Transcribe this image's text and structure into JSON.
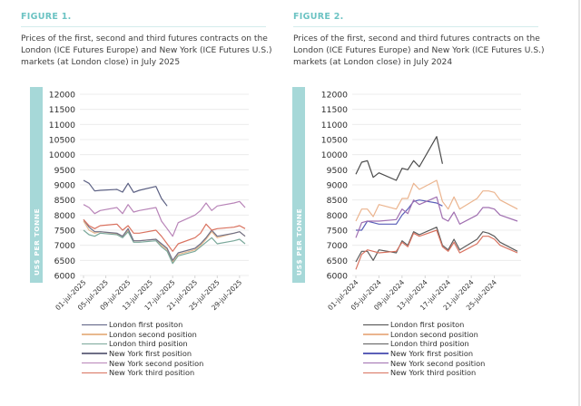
{
  "figures": [
    {
      "label": "FIGURE 1.",
      "description": "Prices of the first, second and third futures contracts on the London (ICE Futures Europe) and New York (ICE Futures U.S.) markets (at London close) in July 2025"
    },
    {
      "label": "FIGURE 2.",
      "description": "Prices of the first, second and third futures contracts on the London (ICE Futures Europe) and New York (ICE Futures U.S.) markets (at London close) in July 2024"
    }
  ],
  "chart_data": [
    {
      "type": "line",
      "title": "FIGURE 1.",
      "ylabel": "US$ PER TONNE",
      "xlabel": "",
      "ylim": [
        6000,
        12000
      ],
      "yticks": [
        12000,
        11500,
        11000,
        10500,
        10000,
        9500,
        9000,
        8500,
        8000,
        7500,
        7000,
        6500,
        6000
      ],
      "xticks": [
        "01-jul-2025",
        "05-jul-2025",
        "09-jul-2025",
        "13-jul-2025",
        "17-jul-2025",
        "21-jul-2025",
        "25-jul-2025",
        "29-jul-2025"
      ],
      "xrange_days": [
        1,
        30
      ],
      "grid": true,
      "legend": "bottom",
      "x_days": [
        1,
        2,
        3,
        4,
        7,
        8,
        9,
        10,
        11,
        14,
        15,
        16,
        17,
        18,
        21,
        22,
        23,
        24,
        25,
        28,
        29,
        30
      ],
      "series": [
        {
          "name": "London first positon",
          "color": "#5a5f82",
          "values": [
            9150,
            9050,
            8800,
            8820,
            8850,
            8760,
            9050,
            8750,
            8820,
            8950,
            8550,
            8300,
            null,
            null,
            null,
            null,
            null,
            null,
            null,
            null,
            null,
            null
          ]
        },
        {
          "name": "London second position",
          "color": "#e8b98e",
          "values": [
            7800,
            7500,
            7400,
            7450,
            7380,
            7300,
            7500,
            7150,
            7150,
            7200,
            7000,
            6850,
            6450,
            6700,
            6850,
            7000,
            7200,
            7450,
            7250,
            7400,
            7450,
            7300
          ]
        },
        {
          "name": "London third position",
          "color": "#7aa89a",
          "values": [
            7500,
            7350,
            7300,
            7400,
            7350,
            7250,
            7450,
            7100,
            7100,
            7150,
            6950,
            6800,
            6400,
            6650,
            6800,
            6950,
            7100,
            7250,
            7050,
            7150,
            7200,
            7050
          ]
        },
        {
          "name": "New York first position",
          "color": "#6e6f86",
          "values": [
            7850,
            7600,
            7450,
            7450,
            7400,
            7300,
            7550,
            7150,
            7150,
            7200,
            7050,
            6900,
            6500,
            6750,
            6900,
            7050,
            7250,
            7500,
            7300,
            7400,
            7450,
            7300
          ]
        },
        {
          "name": "New York second position",
          "color": "#b884b8",
          "values": [
            8350,
            8250,
            8050,
            8150,
            8250,
            8050,
            8350,
            8100,
            8150,
            8250,
            7800,
            7550,
            7300,
            7750,
            8000,
            8150,
            8400,
            8150,
            8300,
            8400,
            8450,
            8250
          ]
        },
        {
          "name": "New York third position",
          "color": "#d9725f",
          "values": [
            7850,
            7650,
            7550,
            7650,
            7700,
            7500,
            7650,
            7400,
            7400,
            7500,
            7300,
            7050,
            6800,
            7050,
            7250,
            7400,
            7700,
            7500,
            7550,
            7600,
            7650,
            7550
          ]
        }
      ]
    },
    {
      "type": "line",
      "title": "FIGURE 2.",
      "ylabel": "US$ PER TONNE",
      "xlabel": "",
      "ylim": [
        6000,
        12000
      ],
      "yticks": [
        12000,
        11500,
        11000,
        10500,
        10000,
        9500,
        9000,
        8500,
        8000,
        7500,
        7000,
        6500,
        6000
      ],
      "xticks": [
        "01-jul-2024",
        "05-jul-2024",
        "09-jul-2024",
        "13-jul-2024",
        "17-jul-2024",
        "21-jul-2024",
        "25-jul-2024"
      ],
      "xrange_days": [
        1,
        29
      ],
      "grid": true,
      "legend": "bottom",
      "x_days": [
        1,
        2,
        3,
        4,
        5,
        8,
        9,
        10,
        11,
        12,
        15,
        16,
        17,
        18,
        19,
        22,
        23,
        24,
        25,
        26,
        29
      ],
      "series": [
        {
          "name": "London first positon",
          "color": "#4a4a4a",
          "values": [
            9350,
            9750,
            9800,
            9250,
            9400,
            9150,
            9550,
            9500,
            9800,
            9600,
            10600,
            9700,
            null,
            null,
            null,
            null,
            null,
            null,
            null,
            null,
            null
          ]
        },
        {
          "name": "London second position",
          "color": "#ebb48e",
          "values": [
            7800,
            8200,
            8200,
            7950,
            8350,
            8200,
            8550,
            8550,
            9050,
            8850,
            9150,
            8450,
            8200,
            8600,
            8200,
            8550,
            8800,
            8800,
            8750,
            8500,
            8200
          ]
        },
        {
          "name": "London third position",
          "color": "#5c5c5c",
          "values": [
            6450,
            6800,
            6800,
            6500,
            6850,
            6750,
            7150,
            7000,
            7450,
            7350,
            7600,
            7000,
            6850,
            7200,
            6850,
            7200,
            7450,
            7400,
            7300,
            7100,
            6800
          ]
        },
        {
          "name": "New York first position",
          "color": "#5a5fb8",
          "values": [
            7500,
            7500,
            7800,
            7750,
            7700,
            7700,
            8000,
            8200,
            8450,
            8500,
            8400,
            8300,
            null,
            null,
            null,
            null,
            null,
            null,
            null,
            null,
            null
          ]
        },
        {
          "name": "New York second position",
          "color": "#a06fb0",
          "values": [
            7250,
            7750,
            7800,
            7800,
            7800,
            7850,
            8200,
            8050,
            8500,
            8350,
            8600,
            7900,
            7800,
            8100,
            7700,
            8000,
            8250,
            8250,
            8200,
            8000,
            7800
          ]
        },
        {
          "name": "New York third position",
          "color": "#d9725f",
          "values": [
            6200,
            6700,
            6850,
            6800,
            6750,
            6800,
            7100,
            6950,
            7400,
            7300,
            7500,
            6950,
            6800,
            7100,
            6750,
            7050,
            7300,
            7300,
            7200,
            7000,
            6750
          ]
        }
      ]
    }
  ]
}
